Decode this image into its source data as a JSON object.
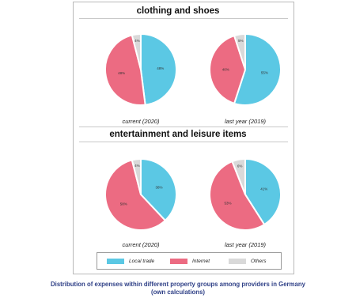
{
  "chart_data": [
    {
      "type": "pie",
      "group": "clothing and shoes",
      "title": "current (2020)",
      "categories": [
        "Local trade",
        "Internet",
        "Others"
      ],
      "values": [
        48,
        48,
        4
      ],
      "labels": [
        "48%",
        "48%",
        "4%"
      ],
      "colors": [
        "#5bc8e4",
        "#ec6b82",
        "#d9d9d9"
      ]
    },
    {
      "type": "pie",
      "group": "clothing and shoes",
      "title": "last year (2019)",
      "categories": [
        "Local trade",
        "Internet",
        "Others"
      ],
      "values": [
        55,
        40,
        5
      ],
      "labels": [
        "55%",
        "40%",
        "5%"
      ],
      "colors": [
        "#5bc8e4",
        "#ec6b82",
        "#d9d9d9"
      ]
    },
    {
      "type": "pie",
      "group": "entertainment and leisure items",
      "title": "current (2020)",
      "categories": [
        "Local trade",
        "Internet",
        "Others"
      ],
      "values": [
        38,
        58,
        4
      ],
      "labels": [
        "38%",
        "58%",
        "4%"
      ],
      "colors": [
        "#5bc8e4",
        "#ec6b82",
        "#d9d9d9"
      ]
    },
    {
      "type": "pie",
      "group": "entertainment and leisure items",
      "title": "last year (2019)",
      "categories": [
        "Local trade",
        "Internet",
        "Others"
      ],
      "values": [
        41,
        53,
        6
      ],
      "labels": [
        "41%",
        "53%",
        "6%"
      ],
      "colors": [
        "#5bc8e4",
        "#ec6b82",
        "#d9d9d9"
      ]
    }
  ],
  "headings": {
    "clothing": "clothing and shoes",
    "entertainment": "entertainment and leisure items"
  },
  "legend": [
    {
      "label": "Local trade",
      "color": "#5bc8e4"
    },
    {
      "label": "Internet",
      "color": "#ec6b82"
    },
    {
      "label": "Others",
      "color": "#d9d9d9"
    }
  ],
  "caption": {
    "line1": "Distribution of expenses within different property groups among providers in Germany",
    "line2": "(own calculations)"
  }
}
